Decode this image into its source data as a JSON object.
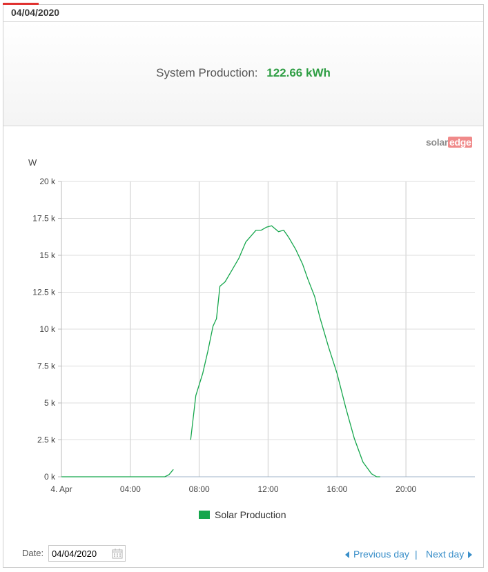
{
  "header": {
    "date_tab": "04/04/2020"
  },
  "summary": {
    "label": "System Production:",
    "value": "122.66 kWh"
  },
  "logo": {
    "part_a": "solar",
    "part_b": "edge"
  },
  "colors": {
    "accent": "#e0312f",
    "series": "#15a64c",
    "link": "#3a8fc9",
    "value": "#2f9e44"
  },
  "chart_data": {
    "type": "line",
    "ylabel": "W",
    "ylim": [
      0,
      20000
    ],
    "yticks": [
      "0 k",
      "2.5 k",
      "5 k",
      "7.5 k",
      "10 k",
      "12.5 k",
      "15 k",
      "17.5 k",
      "20 k"
    ],
    "xlim": [
      0,
      24
    ],
    "xticks": [
      "4. Apr",
      "04:00",
      "08:00",
      "12:00",
      "16:00",
      "20:00"
    ],
    "grid": true,
    "legend_position": "bottom",
    "series": [
      {
        "name": "Solar Production",
        "segments": [
          [
            [
              0,
              0
            ],
            [
              6.0,
              0
            ],
            [
              6.25,
              150
            ],
            [
              6.5,
              500
            ]
          ],
          [
            [
              7.5,
              2500
            ],
            [
              7.8,
              5500
            ],
            [
              8.2,
              7000
            ],
            [
              8.5,
              8500
            ],
            [
              8.8,
              10200
            ],
            [
              9.0,
              10700
            ],
            [
              9.2,
              12900
            ],
            [
              9.5,
              13200
            ],
            [
              9.9,
              14000
            ],
            [
              10.3,
              14800
            ],
            [
              10.7,
              15900
            ],
            [
              11.0,
              16300
            ],
            [
              11.3,
              16700
            ],
            [
              11.6,
              16700
            ],
            [
              11.9,
              16900
            ],
            [
              12.2,
              17000
            ],
            [
              12.4,
              16800
            ],
            [
              12.6,
              16600
            ],
            [
              12.9,
              16700
            ],
            [
              13.2,
              16200
            ],
            [
              13.6,
              15400
            ],
            [
              14.0,
              14400
            ],
            [
              14.3,
              13400
            ],
            [
              14.7,
              12200
            ],
            [
              15.0,
              10800
            ],
            [
              15.5,
              8800
            ],
            [
              16.0,
              7000
            ],
            [
              16.5,
              4700
            ],
            [
              17.0,
              2600
            ],
            [
              17.5,
              1000
            ],
            [
              18.0,
              200
            ],
            [
              18.3,
              0
            ],
            [
              18.5,
              0
            ]
          ]
        ]
      }
    ]
  },
  "footer": {
    "date_label": "Date:",
    "date_value": "04/04/2020",
    "prev_label": "Previous day",
    "separator": "|",
    "next_label": "Next day"
  }
}
